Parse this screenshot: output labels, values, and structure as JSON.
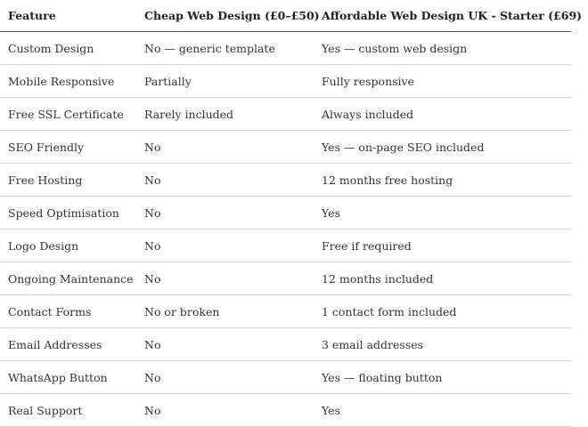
{
  "table": {
    "headers": [
      "Feature",
      "Cheap Web Design (£0–£50)",
      "Affordable Web Design UK - Starter (£69)"
    ],
    "rows": [
      [
        "Custom Design",
        "No — generic template",
        "Yes — custom web design"
      ],
      [
        "Mobile Responsive",
        "Partially",
        "Fully responsive"
      ],
      [
        "Free SSL Certificate",
        "Rarely included",
        "Always included"
      ],
      [
        "SEO Friendly",
        "No",
        "Yes — on-page SEO included"
      ],
      [
        "Free Hosting",
        "No",
        "12 months free hosting"
      ],
      [
        "Speed Optimisation",
        "No",
        "Yes"
      ],
      [
        "Logo Design",
        "No",
        "Free if required"
      ],
      [
        "Ongoing Maintenance",
        "No",
        "12 months included"
      ],
      [
        "Contact Forms",
        "No or broken",
        "1 contact form included"
      ],
      [
        "Email Addresses",
        "No",
        "3 email addresses"
      ],
      [
        "WhatsApp Button",
        "No",
        "Yes — floating button"
      ],
      [
        "Real Support",
        "No",
        "Yes"
      ]
    ]
  }
}
